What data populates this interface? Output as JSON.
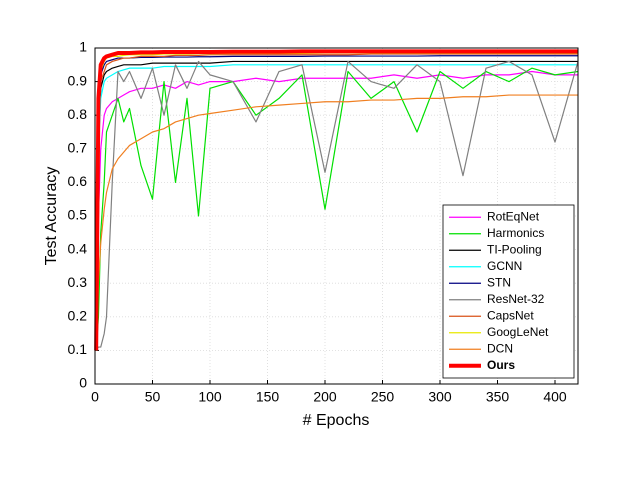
{
  "chart_data": {
    "type": "line",
    "x_label": "# Epochs",
    "y_label": "Test Accuracy",
    "x": [
      1,
      3,
      5,
      8,
      10,
      15,
      20,
      25,
      30,
      40,
      50,
      60,
      70,
      80,
      90,
      100,
      120,
      140,
      160,
      180,
      200,
      220,
      240,
      260,
      280,
      300,
      320,
      340,
      360,
      380,
      400,
      420
    ],
    "xlim": [
      0,
      420
    ],
    "xticks": [
      0,
      50,
      100,
      150,
      200,
      250,
      300,
      350,
      400
    ],
    "ylim": [
      0,
      1
    ],
    "yticks": [
      0,
      0.1,
      0.2,
      0.3,
      0.4,
      0.5,
      0.6,
      0.7,
      0.8,
      0.9,
      1
    ],
    "grid": true,
    "legend": "lower right",
    "series": [
      {
        "name": "RotEqNet",
        "color": "#ff00ff",
        "values": [
          0.1,
          0.5,
          0.7,
          0.8,
          0.82,
          0.84,
          0.85,
          0.86,
          0.87,
          0.88,
          0.88,
          0.89,
          0.88,
          0.9,
          0.89,
          0.9,
          0.9,
          0.91,
          0.9,
          0.91,
          0.91,
          0.91,
          0.91,
          0.92,
          0.91,
          0.92,
          0.91,
          0.92,
          0.92,
          0.93,
          0.92,
          0.92
        ]
      },
      {
        "name": "Harmonics",
        "color": "#00e000",
        "values": [
          0.1,
          0.2,
          0.45,
          0.6,
          0.75,
          0.8,
          0.85,
          0.78,
          0.82,
          0.65,
          0.55,
          0.9,
          0.6,
          0.85,
          0.5,
          0.88,
          0.9,
          0.8,
          0.85,
          0.92,
          0.52,
          0.93,
          0.85,
          0.9,
          0.75,
          0.93,
          0.88,
          0.93,
          0.9,
          0.94,
          0.92,
          0.93
        ]
      },
      {
        "name": "TI-Pooling",
        "color": "#000000",
        "values": [
          0.1,
          0.7,
          0.88,
          0.92,
          0.93,
          0.94,
          0.945,
          0.95,
          0.95,
          0.95,
          0.955,
          0.955,
          0.955,
          0.955,
          0.955,
          0.955,
          0.96,
          0.96,
          0.96,
          0.96,
          0.96,
          0.96,
          0.96,
          0.96,
          0.96,
          0.96,
          0.96,
          0.96,
          0.96,
          0.96,
          0.96,
          0.96
        ]
      },
      {
        "name": "GCNN",
        "color": "#00ffff",
        "values": [
          0.1,
          0.7,
          0.85,
          0.9,
          0.91,
          0.92,
          0.93,
          0.935,
          0.94,
          0.94,
          0.94,
          0.945,
          0.945,
          0.945,
          0.945,
          0.945,
          0.95,
          0.95,
          0.95,
          0.95,
          0.95,
          0.95,
          0.95,
          0.95,
          0.95,
          0.95,
          0.95,
          0.95,
          0.95,
          0.95,
          0.95,
          0.95
        ]
      },
      {
        "name": "STN",
        "color": "#000080",
        "values": [
          0.1,
          0.8,
          0.92,
          0.95,
          0.96,
          0.965,
          0.97,
          0.97,
          0.97,
          0.972,
          0.972,
          0.973,
          0.973,
          0.973,
          0.974,
          0.974,
          0.975,
          0.975,
          0.975,
          0.975,
          0.976,
          0.976,
          0.976,
          0.976,
          0.976,
          0.977,
          0.977,
          0.977,
          0.977,
          0.977,
          0.977,
          0.977
        ]
      },
      {
        "name": "ResNet-32",
        "color": "#808080",
        "values": [
          0.1,
          0.11,
          0.11,
          0.15,
          0.2,
          0.6,
          0.93,
          0.9,
          0.93,
          0.85,
          0.94,
          0.8,
          0.95,
          0.88,
          0.96,
          0.92,
          0.9,
          0.78,
          0.93,
          0.95,
          0.63,
          0.96,
          0.9,
          0.88,
          0.95,
          0.9,
          0.62,
          0.94,
          0.96,
          0.92,
          0.72,
          0.96
        ]
      },
      {
        "name": "CapsNet",
        "color": "#d95319",
        "values": [
          0.1,
          0.75,
          0.9,
          0.93,
          0.95,
          0.96,
          0.965,
          0.97,
          0.97,
          0.975,
          0.975,
          0.975,
          0.978,
          0.978,
          0.978,
          0.98,
          0.98,
          0.98,
          0.98,
          0.98,
          0.98,
          0.98,
          0.982,
          0.982,
          0.982,
          0.982,
          0.982,
          0.982,
          0.982,
          0.982,
          0.982,
          0.982
        ]
      },
      {
        "name": "GoogLeNet",
        "color": "#e8e800",
        "values": [
          0.1,
          0.8,
          0.93,
          0.96,
          0.97,
          0.975,
          0.975,
          0.978,
          0.98,
          0.98,
          0.98,
          0.982,
          0.982,
          0.982,
          0.983,
          0.983,
          0.984,
          0.984,
          0.984,
          0.984,
          0.985,
          0.985,
          0.985,
          0.985,
          0.985,
          0.985,
          0.985,
          0.985,
          0.985,
          0.985,
          0.985,
          0.985
        ]
      },
      {
        "name": "DCN",
        "color": "#f07f20",
        "values": [
          0.1,
          0.3,
          0.42,
          0.52,
          0.57,
          0.64,
          0.67,
          0.69,
          0.71,
          0.73,
          0.75,
          0.76,
          0.78,
          0.79,
          0.8,
          0.805,
          0.815,
          0.825,
          0.83,
          0.835,
          0.84,
          0.84,
          0.845,
          0.845,
          0.85,
          0.85,
          0.855,
          0.855,
          0.86,
          0.86,
          0.86,
          0.86
        ]
      },
      {
        "name": "Ours",
        "color": "#ff0000",
        "bold": true,
        "values": [
          0.1,
          0.85,
          0.95,
          0.97,
          0.975,
          0.98,
          0.985,
          0.985,
          0.985,
          0.987,
          0.987,
          0.988,
          0.988,
          0.988,
          0.988,
          0.988,
          0.989,
          0.989,
          0.989,
          0.99,
          0.99,
          0.99,
          0.99,
          0.99,
          0.99,
          0.99,
          0.99,
          0.99,
          0.99,
          0.99,
          0.99,
          0.99
        ]
      }
    ]
  }
}
